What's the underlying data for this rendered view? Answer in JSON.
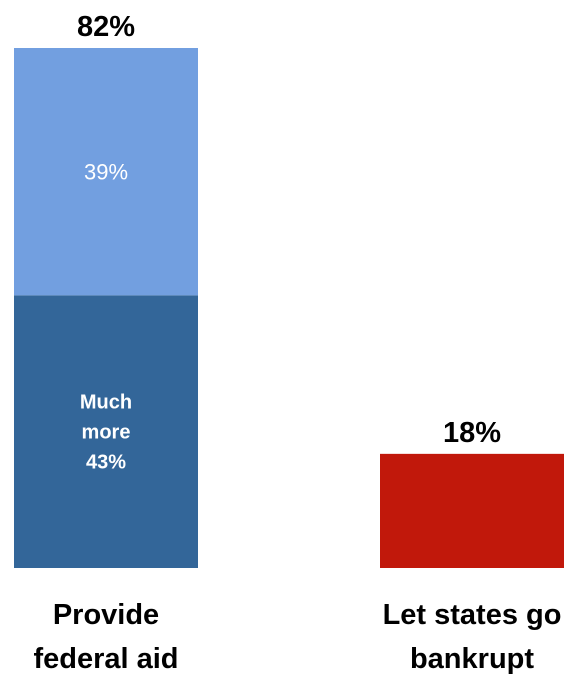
{
  "chart_data": {
    "type": "bar",
    "stacked": true,
    "categories": [
      [
        "Provide",
        "federal aid"
      ],
      [
        "Let states go",
        "bankrupt"
      ]
    ],
    "bars": [
      {
        "total": 82,
        "total_label": "82%",
        "segments": [
          {
            "value": 43,
            "label_lines": [
              "Much",
              "more",
              "43%"
            ],
            "color": "#336699"
          },
          {
            "value": 39,
            "label_lines": [
              "39%"
            ],
            "color": "#729FE0"
          }
        ]
      },
      {
        "total": 18,
        "total_label": "18%",
        "segments": [
          {
            "value": 18,
            "label_lines": [],
            "color": "#C1180B"
          }
        ]
      }
    ],
    "ylim": [
      0,
      82
    ],
    "grid": false,
    "legend": "none"
  }
}
